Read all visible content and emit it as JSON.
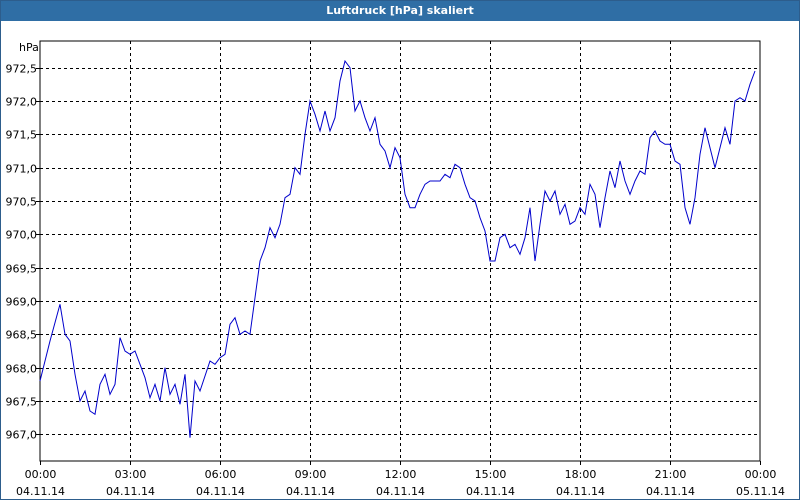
{
  "window": {
    "title": "Luftdruck [hPa] skaliert"
  },
  "chart_data": {
    "type": "line",
    "title": "Luftdruck [hPa] skaliert",
    "ylabel": "hPa",
    "xlabel": "",
    "ylim": [
      966.6,
      972.9
    ],
    "yticks": [
      967.0,
      967.5,
      968.0,
      968.5,
      969.0,
      969.5,
      970.0,
      970.5,
      971.0,
      971.5,
      972.0,
      972.5
    ],
    "ytick_labels": [
      "967,0",
      "967,5",
      "968,0",
      "968,5",
      "969,0",
      "969,5",
      "970,0",
      "970,5",
      "971,0",
      "971,5",
      "972,0",
      "972,5"
    ],
    "xlim": [
      "04.11.14 00:00",
      "05.11.14 00:00"
    ],
    "xtick_times": [
      "00:00",
      "03:00",
      "06:00",
      "09:00",
      "12:00",
      "15:00",
      "18:00",
      "21:00",
      "00:00"
    ],
    "xtick_dates": [
      "04.11.14",
      "04.11.14",
      "04.11.14",
      "04.11.14",
      "04.11.14",
      "04.11.14",
      "04.11.14",
      "04.11.14",
      "05.11.14"
    ],
    "grid": true,
    "colors": {
      "line": "#0000cc",
      "grid": "#000000",
      "title_bar": "#2f6ea5",
      "frame": "#2d5d8c"
    },
    "series": [
      {
        "x": [
          "04.11.14 00:00",
          "04.11.14 00:20",
          "04.11.14 00:40",
          "04.11.14 00:50",
          "04.11.14 01:00",
          "04.11.14 01:10",
          "04.11.14 01:20",
          "04.11.14 01:30",
          "04.11.14 01:40",
          "04.11.14 01:50",
          "04.11.14 02:00",
          "04.11.14 02:10",
          "04.11.14 02:20",
          "04.11.14 02:30",
          "04.11.14 02:40",
          "04.11.14 02:50",
          "04.11.14 03:00",
          "04.11.14 03:10",
          "04.11.14 03:20",
          "04.11.14 03:30",
          "04.11.14 03:40",
          "04.11.14 03:50",
          "04.11.14 04:00",
          "04.11.14 04:10",
          "04.11.14 04:20",
          "04.11.14 04:30",
          "04.11.14 04:40",
          "04.11.14 04:50",
          "04.11.14 05:00",
          "04.11.14 05:10",
          "04.11.14 05:20",
          "04.11.14 05:40",
          "04.11.14 05:50",
          "04.11.14 06:00",
          "04.11.14 06:10",
          "04.11.14 06:20",
          "04.11.14 06:30",
          "04.11.14 06:40",
          "04.11.14 06:50",
          "04.11.14 07:00",
          "04.11.14 07:10",
          "04.11.14 07:20",
          "04.11.14 07:30",
          "04.11.14 07:40",
          "04.11.14 07:50",
          "04.11.14 08:00",
          "04.11.14 08:10",
          "04.11.14 08:20",
          "04.11.14 08:30",
          "04.11.14 08:40",
          "04.11.14 08:50",
          "04.11.14 09:00",
          "04.11.14 09:10",
          "04.11.14 09:20",
          "04.11.14 09:30",
          "04.11.14 09:40",
          "04.11.14 09:50",
          "04.11.14 10:00",
          "04.11.14 10:10",
          "04.11.14 10:20",
          "04.11.14 10:30",
          "04.11.14 10:40",
          "04.11.14 10:50",
          "04.11.14 11:00",
          "04.11.14 11:10",
          "04.11.14 11:20",
          "04.11.14 11:30",
          "04.11.14 11:40",
          "04.11.14 11:50",
          "04.11.14 12:00",
          "04.11.14 12:10",
          "04.11.14 12:20",
          "04.11.14 12:30",
          "04.11.14 12:40",
          "04.11.14 12:50",
          "04.11.14 13:00",
          "04.11.14 13:10",
          "04.11.14 13:20",
          "04.11.14 13:30",
          "04.11.14 13:40",
          "04.11.14 13:50",
          "04.11.14 14:00",
          "04.11.14 14:10",
          "04.11.14 14:20",
          "04.11.14 14:30",
          "04.11.14 14:40",
          "04.11.14 14:50",
          "04.11.14 15:00",
          "04.11.14 15:10",
          "04.11.14 15:20",
          "04.11.14 15:30",
          "04.11.14 15:40",
          "04.11.14 15:50",
          "04.11.14 16:00",
          "04.11.14 16:10",
          "04.11.14 16:20",
          "04.11.14 16:30",
          "04.11.14 16:40",
          "04.11.14 16:50",
          "04.11.14 17:00",
          "04.11.14 17:10",
          "04.11.14 17:20",
          "04.11.14 17:30",
          "04.11.14 17:40",
          "04.11.14 17:50",
          "04.11.14 18:00",
          "04.11.14 18:10",
          "04.11.14 18:20",
          "04.11.14 18:30",
          "04.11.14 18:40",
          "04.11.14 18:50",
          "04.11.14 19:00",
          "04.11.14 19:10",
          "04.11.14 19:20",
          "04.11.14 19:30",
          "04.11.14 19:40",
          "04.11.14 19:50",
          "04.11.14 20:00",
          "04.11.14 20:10",
          "04.11.14 20:20",
          "04.11.14 20:30",
          "04.11.14 20:40",
          "04.11.14 20:50",
          "04.11.14 21:00",
          "04.11.14 21:10",
          "04.11.14 21:20",
          "04.11.14 21:30",
          "04.11.14 21:40",
          "04.11.14 21:50",
          "04.11.14 22:00",
          "04.11.14 22:10",
          "04.11.14 22:20",
          "04.11.14 22:30",
          "04.11.14 22:40",
          "04.11.14 22:50",
          "04.11.14 23:00",
          "04.11.14 23:10",
          "04.11.14 23:20",
          "04.11.14 23:30",
          "04.11.14 23:40",
          "04.11.14 23:50"
        ],
        "values": [
          967.8,
          968.4,
          968.95,
          968.5,
          968.4,
          967.9,
          967.5,
          967.65,
          967.35,
          967.3,
          967.75,
          967.9,
          967.6,
          967.75,
          968.45,
          968.25,
          968.2,
          968.25,
          968.05,
          967.85,
          967.55,
          967.75,
          967.5,
          968.0,
          967.6,
          967.75,
          967.45,
          967.9,
          966.95,
          967.8,
          967.65,
          968.1,
          968.05,
          968.15,
          968.2,
          968.65,
          968.75,
          968.5,
          968.55,
          968.5,
          969.05,
          969.6,
          969.8,
          970.1,
          969.95,
          970.15,
          970.55,
          970.6,
          971.0,
          970.9,
          971.5,
          972.0,
          971.8,
          971.55,
          971.85,
          971.55,
          971.75,
          972.3,
          972.6,
          972.5,
          971.85,
          972.0,
          971.75,
          971.55,
          971.75,
          971.35,
          971.25,
          971.0,
          971.3,
          971.15,
          970.6,
          970.4,
          970.4,
          970.6,
          970.75,
          970.8,
          970.8,
          970.8,
          970.9,
          970.85,
          971.05,
          971.0,
          970.75,
          970.55,
          970.5,
          970.25,
          970.05,
          969.6,
          969.6,
          969.95,
          970.0,
          969.8,
          969.85,
          969.7,
          969.95,
          970.4,
          969.6,
          970.15,
          970.65,
          970.5,
          970.65,
          970.3,
          970.45,
          970.15,
          970.2,
          970.4,
          970.3,
          970.75,
          970.6,
          970.1,
          970.55,
          970.95,
          970.7,
          971.1,
          970.8,
          970.6,
          970.8,
          970.95,
          970.9,
          971.45,
          971.55,
          971.4,
          971.35,
          971.35,
          971.1,
          971.05,
          970.4,
          970.15,
          970.55,
          971.2,
          971.6,
          971.3,
          971.0,
          971.3,
          971.6,
          971.35,
          972.0,
          972.05,
          972.0,
          972.25,
          972.45
        ]
      }
    ]
  }
}
